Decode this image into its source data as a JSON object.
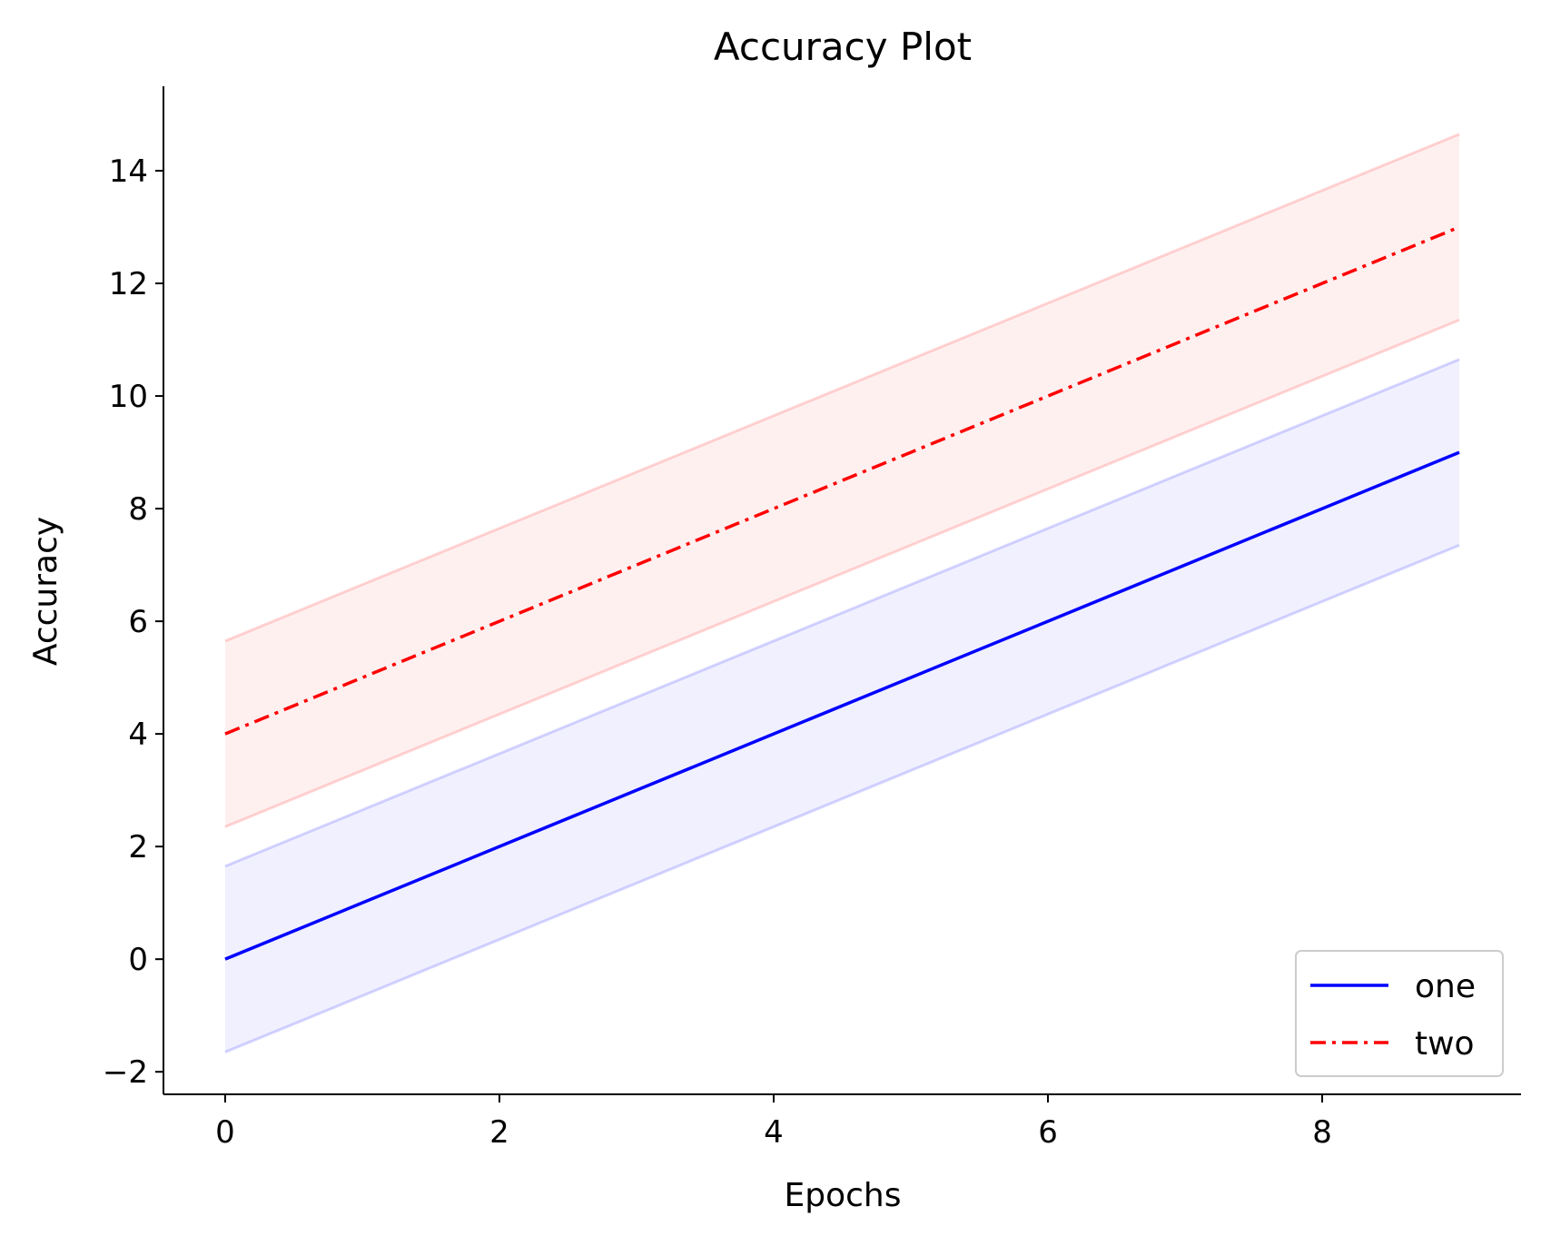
{
  "chart_data": {
    "type": "line",
    "title": "Accuracy Plot",
    "xlabel": "Epochs",
    "ylabel": "Accuracy",
    "xlim": [
      -0.45,
      9.45
    ],
    "ylim": [
      -2.4,
      15.5
    ],
    "xticks": [
      0,
      2,
      4,
      6,
      8
    ],
    "yticks": [
      -2,
      0,
      2,
      4,
      6,
      8,
      10,
      12,
      14
    ],
    "x": [
      0,
      1,
      2,
      3,
      4,
      5,
      6,
      7,
      8,
      9
    ],
    "series": [
      {
        "name": "one",
        "color": "#0000ff",
        "linestyle": "solid",
        "values": [
          0,
          1,
          2,
          3,
          4,
          5,
          6,
          7,
          8,
          9
        ],
        "lower": [
          -1.65,
          -0.65,
          0.35,
          1.35,
          2.35,
          3.35,
          4.35,
          5.35,
          6.35,
          7.35
        ],
        "upper": [
          1.65,
          2.65,
          3.65,
          4.65,
          5.65,
          6.65,
          7.65,
          8.65,
          9.65,
          10.65
        ]
      },
      {
        "name": "two",
        "color": "#ff0000",
        "linestyle": "dashdot",
        "values": [
          4,
          5,
          6,
          7,
          8,
          9,
          10,
          11,
          12,
          13
        ],
        "lower": [
          2.35,
          3.35,
          4.35,
          5.35,
          6.35,
          7.35,
          8.35,
          9.35,
          10.35,
          11.35
        ],
        "upper": [
          5.65,
          6.65,
          7.65,
          8.65,
          9.65,
          10.65,
          11.65,
          12.65,
          13.65,
          14.65
        ]
      }
    ],
    "legend_position": "lower-right",
    "grid": false
  }
}
